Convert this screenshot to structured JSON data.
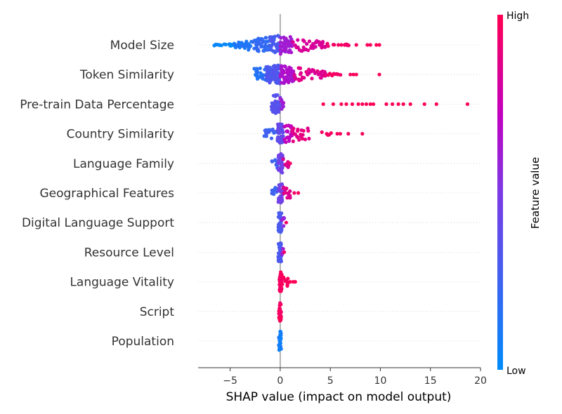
{
  "chart_data": {
    "type": "scatter",
    "subtype": "shap-beeswarm",
    "title": "",
    "xlabel": "SHAP value (impact on model output)",
    "ylabel": "",
    "xlim": [
      -8.2,
      20.0
    ],
    "xticks": [
      -5,
      0,
      5,
      10,
      15,
      20
    ],
    "xtick_labels": [
      "−5",
      "0",
      "5",
      "10",
      "15",
      "20"
    ],
    "colorbar": {
      "label": "Feature value",
      "high": "High",
      "low": "Low"
    },
    "colors": {
      "low": "#008bfb",
      "high": "#ff0052"
    },
    "features": [
      {
        "name": "Model Size",
        "spans": [
          [
            -7.0,
            -4.6,
            20,
            0.02
          ],
          [
            -4.6,
            -2.8,
            30,
            0.12
          ],
          [
            -2.8,
            -1.0,
            45,
            0.2
          ],
          [
            -1.0,
            0.0,
            40,
            0.3
          ],
          [
            0.0,
            1.2,
            40,
            0.62
          ],
          [
            1.2,
            4.5,
            40,
            0.82
          ],
          [
            4.5,
            7.0,
            10,
            0.94
          ]
        ],
        "points": [
          [
            5.8,
            0.96
          ],
          [
            6.1,
            0.97
          ],
          [
            7.6,
            0.97
          ],
          [
            8.7,
            0.98
          ],
          [
            9.0,
            0.98
          ],
          [
            9.6,
            0.99
          ],
          [
            9.9,
            0.99
          ]
        ]
      },
      {
        "name": "Token Similarity",
        "spans": [
          [
            -2.6,
            -1.4,
            22,
            0.15
          ],
          [
            -1.4,
            0.0,
            80,
            0.32
          ],
          [
            0.0,
            1.4,
            70,
            0.65
          ],
          [
            1.4,
            4.6,
            40,
            0.85
          ],
          [
            4.6,
            6.5,
            10,
            0.95
          ]
        ],
        "points": [
          [
            7.0,
            0.97
          ],
          [
            7.3,
            0.98
          ],
          [
            7.6,
            0.98
          ],
          [
            9.9,
            0.99
          ]
        ]
      },
      {
        "name": "Pre-train Data Percentage",
        "spans": [
          [
            -0.9,
            0.0,
            40,
            0.35
          ],
          [
            0.0,
            0.4,
            10,
            0.6
          ]
        ],
        "points": [
          [
            4.3,
            0.99
          ],
          [
            5.3,
            0.99
          ],
          [
            6.1,
            0.99
          ],
          [
            6.6,
            0.99
          ],
          [
            7.2,
            0.99
          ],
          [
            7.8,
            0.99
          ],
          [
            8.2,
            0.99
          ],
          [
            8.6,
            0.99
          ],
          [
            9.0,
            0.99
          ],
          [
            9.3,
            0.99
          ],
          [
            10.6,
            0.99
          ],
          [
            11.2,
            0.99
          ],
          [
            11.8,
            0.99
          ],
          [
            12.3,
            0.99
          ],
          [
            13.0,
            0.99
          ],
          [
            14.4,
            0.99
          ],
          [
            15.6,
            0.99
          ],
          [
            18.7,
            0.99
          ]
        ]
      },
      {
        "name": "Country Similarity",
        "spans": [
          [
            -1.6,
            -0.3,
            18,
            0.25
          ],
          [
            -0.3,
            0.3,
            40,
            0.4
          ],
          [
            0.3,
            1.2,
            25,
            0.72
          ],
          [
            1.2,
            3.0,
            22,
            0.88
          ],
          [
            4.1,
            5.3,
            8,
            0.95
          ]
        ],
        "points": [
          [
            5.7,
            0.96
          ],
          [
            6.0,
            0.97
          ],
          [
            6.8,
            0.97
          ],
          [
            8.2,
            0.98
          ]
        ]
      },
      {
        "name": "Language Family",
        "spans": [
          [
            -0.9,
            -0.2,
            10,
            0.25
          ],
          [
            -0.2,
            0.3,
            30,
            0.45
          ],
          [
            0.3,
            0.9,
            12,
            0.85
          ]
        ],
        "points": [
          [
            1.0,
            0.95
          ]
        ]
      },
      {
        "name": "Geographical Features",
        "spans": [
          [
            -0.9,
            -0.2,
            10,
            0.25
          ],
          [
            -0.2,
            0.3,
            30,
            0.45
          ],
          [
            0.3,
            1.2,
            14,
            0.85
          ]
        ],
        "points": [
          [
            1.4,
            0.95
          ],
          [
            1.8,
            0.97
          ]
        ]
      },
      {
        "name": "Digital Language Support",
        "spans": [
          [
            -0.2,
            0.15,
            35,
            0.3
          ],
          [
            0.15,
            0.4,
            5,
            0.6
          ]
        ],
        "points": [
          [
            0.6,
            0.95
          ]
        ]
      },
      {
        "name": "Resource Level",
        "spans": [
          [
            -0.2,
            0.15,
            35,
            0.3
          ],
          [
            0.15,
            0.3,
            3,
            0.6
          ]
        ],
        "points": [
          [
            0.4,
            0.95
          ]
        ]
      },
      {
        "name": "Language Vitality",
        "spans": [
          [
            -0.1,
            0.15,
            38,
            0.97
          ],
          [
            0.15,
            0.8,
            10,
            0.98
          ]
        ],
        "points": [
          [
            1.0,
            0.99
          ],
          [
            1.3,
            0.99
          ],
          [
            1.5,
            0.99
          ]
        ]
      },
      {
        "name": "Script",
        "spans": [
          [
            -0.15,
            0.1,
            28,
            0.97
          ]
        ],
        "points": []
      },
      {
        "name": "Population",
        "spans": [
          [
            -0.15,
            0.1,
            28,
            0.08
          ]
        ],
        "points": []
      }
    ]
  }
}
